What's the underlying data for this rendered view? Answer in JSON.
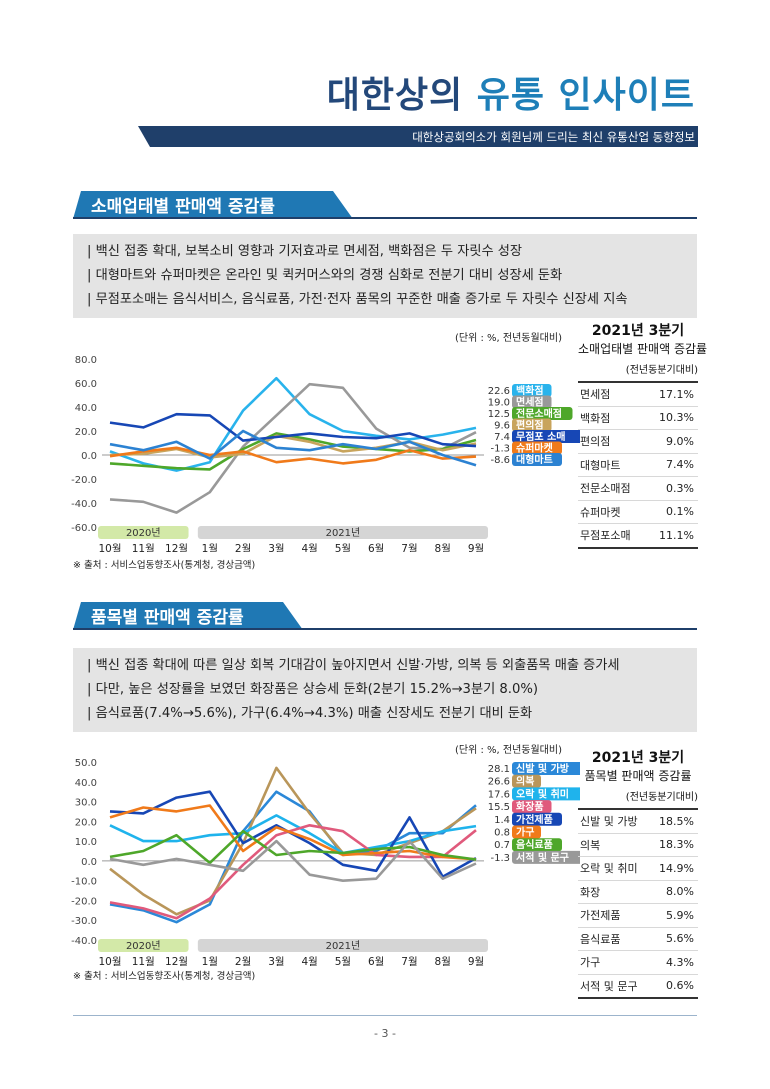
{
  "header": {
    "title_main": "대한상의",
    "title_accent": "유통 인사이트",
    "subtitle": "대한상공회의소가 회원님께 드리는 최신 유통산업 동향정보"
  },
  "section1": {
    "heading": "소매업태별 판매액 증감률",
    "bullets": [
      "| 백신 접종 확대, 보복소비 영향과 기저효과로 면세점, 백화점은 두 자릿수 성장",
      "| 대형마트와 슈퍼마켓은 온라인 및 퀵커머스와의 경쟁 심화로 전분기 대비 성장세 둔화",
      "| 무점포소매는 음식서비스, 음식료품, 가전·전자 품목의 꾸준한 매출 증가로 두 자릿수 신장세 지속"
    ],
    "unit": "(단위 : %, 전년동월대비)",
    "source": "※ 출처 : 서비스업동향조사(통계청, 경상금액)",
    "table": {
      "title": "2021년 3분기",
      "subtitle": "소매업태별 판매액 증감률",
      "unit": "(전년동분기대비)",
      "rows": [
        {
          "label": "면세점",
          "value": "17.1%"
        },
        {
          "label": "백화점",
          "value": "10.3%"
        },
        {
          "label": "편의점",
          "value": "9.0%"
        },
        {
          "label": "대형마트",
          "value": "7.4%"
        },
        {
          "label": "전문소매점",
          "value": "0.3%"
        },
        {
          "label": "슈퍼마켓",
          "value": "0.1%"
        },
        {
          "label": "무점포소매",
          "value": "11.1%"
        }
      ]
    }
  },
  "section2": {
    "heading": "품목별 판매액 증감률",
    "bullets": [
      "| 백신 접종 확대에 따른 일상 회복 기대감이 높아지면서 신발·가방, 의복 등 외출품목 매출 증가세",
      "| 다만, 높은 성장률을 보였던 화장품은 상승세 둔화(2분기 15.2%→3분기 8.0%)",
      "| 음식료품(7.4%→5.6%), 가구(6.4%→4.3%) 매출 신장세도 전분기 대비 둔화"
    ],
    "unit": "(단위 : %, 전년동월대비)",
    "source": "※ 출처 : 서비스업동향조사(통계청, 경상금액)",
    "table": {
      "title": "2021년 3분기",
      "subtitle": "품목별 판매액 증감률",
      "unit": "(전년동분기대비)",
      "rows": [
        {
          "label": "신발 및 가방",
          "value": "18.5%"
        },
        {
          "label": "의복",
          "value": "18.3%"
        },
        {
          "label": "오락 및 취미",
          "value": "14.9%"
        },
        {
          "label": "화장",
          "value": "8.0%"
        },
        {
          "label": "가전제품",
          "value": "5.9%"
        },
        {
          "label": "음식료품",
          "value": "5.6%"
        },
        {
          "label": "가구",
          "value": "4.3%"
        },
        {
          "label": "서적 및 문구",
          "value": "0.6%"
        }
      ]
    }
  },
  "page_number": "- 3 -",
  "chart_data": [
    {
      "type": "line",
      "x": [
        "10월",
        "11월",
        "12월",
        "1월",
        "2월",
        "3월",
        "4월",
        "5월",
        "6월",
        "7월",
        "8월",
        "9월"
      ],
      "year_bands": [
        {
          "label": "2020년",
          "from": 0,
          "to": 2,
          "color": "#d3e9a8"
        },
        {
          "label": "2021년",
          "from": 3,
          "to": 11,
          "color": "#d5d5d5"
        }
      ],
      "ylim": [
        -60,
        80
      ],
      "yticks": [
        80,
        60,
        40,
        20,
        0,
        -20,
        -40,
        -60
      ],
      "ytick_labels": [
        "80.0",
        "60.0",
        "40.0",
        "20.0",
        "0.0",
        "-20.0",
        "-40.0",
        "-60.0"
      ],
      "series": [
        {
          "name": "백화점",
          "color": "#29b3ec",
          "end_label": "22.6",
          "values": [
            3,
            -7,
            -13,
            -6,
            37,
            64,
            34,
            20,
            16,
            13,
            17,
            22.6
          ]
        },
        {
          "name": "면세점",
          "color": "#999999",
          "end_label": "19.0",
          "values": [
            -37,
            -39,
            -48,
            -31,
            7,
            33,
            59,
            56,
            22,
            6,
            5,
            19.0
          ]
        },
        {
          "name": "전문소매점",
          "color": "#4ea72a",
          "end_label": "12.5",
          "values": [
            -7,
            -9,
            -11,
            -12,
            5,
            18,
            13,
            7,
            5,
            3,
            5,
            12.5
          ]
        },
        {
          "name": "편의점",
          "color": "#c8a45c",
          "end_label": "9.6",
          "values": [
            0,
            1,
            5,
            -2,
            1,
            16,
            11,
            3,
            6,
            11,
            4,
            9.6
          ]
        },
        {
          "name": "무점포 소매",
          "color": "#1747b5",
          "end_label": "7.4",
          "values": [
            27,
            23,
            34,
            33,
            12,
            15,
            18,
            15,
            14,
            18,
            9,
            7.4
          ]
        },
        {
          "name": "슈퍼마켓",
          "color": "#f07a1a",
          "end_label": "-1.3",
          "values": [
            -1,
            3,
            6,
            0,
            3,
            -6,
            -3,
            -7,
            -4,
            4,
            -3,
            -1.3
          ]
        },
        {
          "name": "대형마트",
          "color": "#2c82d2",
          "end_label": "-8.6",
          "values": [
            9,
            4,
            11,
            -3,
            20,
            6,
            4,
            9,
            5,
            11,
            0,
            -8.6
          ]
        }
      ]
    },
    {
      "type": "line",
      "x": [
        "10월",
        "11월",
        "12월",
        "1월",
        "2월",
        "3월",
        "4월",
        "5월",
        "6월",
        "7월",
        "8월",
        "9월"
      ],
      "year_bands": [
        {
          "label": "2020년",
          "from": 0,
          "to": 2,
          "color": "#d3e9a8"
        },
        {
          "label": "2021년",
          "from": 3,
          "to": 11,
          "color": "#d5d5d5"
        }
      ],
      "ylim": [
        -40,
        50
      ],
      "yticks": [
        50,
        40,
        30,
        20,
        10,
        0,
        -10,
        -20,
        -30,
        -40
      ],
      "ytick_labels": [
        "50.0",
        "40.0",
        "30.0",
        "20.0",
        "10.0",
        "0.0",
        "-10.0",
        "-20.0",
        "-30.0",
        "-40.0"
      ],
      "series": [
        {
          "name": "신발 및 가방",
          "color": "#2b88d8",
          "end_label": "28.1",
          "values": [
            -22,
            -25,
            -31,
            -22,
            15,
            35,
            25,
            3,
            5,
            14,
            14,
            28.1
          ]
        },
        {
          "name": "의복",
          "color": "#b9965a",
          "end_label": "26.6",
          "values": [
            -4,
            -17,
            -27,
            -20,
            9,
            47,
            24,
            4,
            3,
            9,
            15,
            26.6
          ]
        },
        {
          "name": "오락 및 취미",
          "color": "#1fb3ec",
          "end_label": "17.6",
          "values": [
            18,
            10,
            10,
            13,
            14,
            23,
            14,
            4,
            7,
            10,
            15,
            17.6
          ]
        },
        {
          "name": "화장품",
          "color": "#e05a7c",
          "end_label": "15.5",
          "values": [
            -21,
            -24,
            -29,
            -19,
            -2,
            13,
            18,
            15,
            3,
            2,
            2,
            15.5
          ]
        },
        {
          "name": "가전제품",
          "color": "#1747b5",
          "end_label": "1.4",
          "values": [
            25,
            24,
            32,
            35,
            9,
            18,
            9,
            -2,
            -5,
            22,
            -8,
            1.4
          ]
        },
        {
          "name": "가구",
          "color": "#f07a1a",
          "end_label": "0.8",
          "values": [
            22,
            27,
            25,
            28,
            5,
            17,
            11,
            3,
            4,
            5,
            2,
            0.8
          ]
        },
        {
          "name": "음식료품",
          "color": "#4ea72a",
          "end_label": "0.7",
          "values": [
            2,
            5,
            13,
            -1,
            15,
            3,
            5,
            4,
            6,
            7,
            3,
            0.7
          ]
        },
        {
          "name": "서적 및 문구",
          "color": "#999999",
          "end_label": "-1.3",
          "values": [
            1,
            -2,
            1,
            -2,
            -5,
            10,
            -7,
            -10,
            -9,
            10,
            -9,
            -1.3
          ]
        }
      ]
    }
  ]
}
